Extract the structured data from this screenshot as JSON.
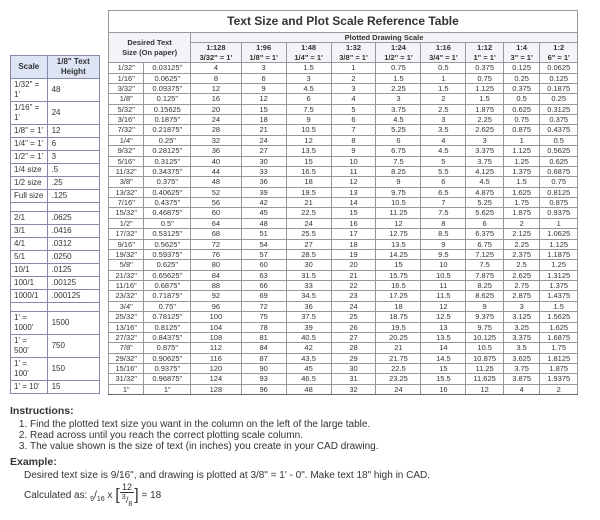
{
  "small_table": {
    "headers": [
      "Scale",
      "1/8\" Text Height"
    ],
    "groups": [
      [
        [
          "1/32\" = 1'",
          "48"
        ],
        [
          "1/16\" = 1'",
          "24"
        ],
        [
          "1/8\" = 1'",
          "12"
        ],
        [
          "1/4\" = 1'",
          "6"
        ],
        [
          "1/2\" = 1'",
          "3"
        ],
        [
          "1/4 size",
          ".5"
        ],
        [
          "1/2 size",
          ".25"
        ],
        [
          "Full size",
          ".125"
        ]
      ],
      [
        [
          "2/1",
          ".0625"
        ],
        [
          "3/1",
          ".0416"
        ],
        [
          "4/1",
          ".0312"
        ],
        [
          "5/1",
          ".0250"
        ],
        [
          "10/1",
          ".0125"
        ],
        [
          "100/1",
          ".00125"
        ],
        [
          "1000/1",
          ".000125"
        ]
      ],
      [
        [
          "1' = 1000'",
          "1500"
        ],
        [
          "1' = 500'",
          "750"
        ],
        [
          "1' = 100'",
          "150"
        ],
        [
          "1' = 10'",
          "15"
        ]
      ]
    ]
  },
  "main_table": {
    "title": "Text Size and Plot Scale Reference Table",
    "spanner": "Plotted Drawing Scale",
    "desired_header": [
      "Desired Text",
      "Size (On paper)"
    ],
    "scale_cols": [
      {
        "top": "1:128",
        "bot": "3/32\" = 1'"
      },
      {
        "top": "1:96",
        "bot": "1/8\" = 1'"
      },
      {
        "top": "1:48",
        "bot": "1/4\" = 1'"
      },
      {
        "top": "1:32",
        "bot": "3/8\" = 1'"
      },
      {
        "top": "1:24",
        "bot": "1/2\" = 1'"
      },
      {
        "top": "1:16",
        "bot": "3/4\" = 1'"
      },
      {
        "top": "1:12",
        "bot": "1\" = 1'"
      },
      {
        "top": "1:4",
        "bot": "3\" = 1'"
      },
      {
        "top": "1:2",
        "bot": "6\" = 1'"
      }
    ],
    "rows": [
      [
        "1/32\"",
        "0.03125\"",
        "4",
        "3",
        "1.5",
        "1",
        "0.75",
        "0.5",
        "0.375",
        "0.125",
        "0.0625"
      ],
      [
        "1/16\"",
        "0.0625\"",
        "8",
        "6",
        "3",
        "2",
        "1.5",
        "1",
        "0.75",
        "0.25",
        "0.125"
      ],
      [
        "3/32\"",
        "0.09375\"",
        "12",
        "9",
        "4.5",
        "3",
        "2.25",
        "1.5",
        "1.125",
        "0.375",
        "0.1875"
      ],
      [
        "1/8\"",
        "0.125\"",
        "16",
        "12",
        "6",
        "4",
        "3",
        "2",
        "1.5",
        "0.5",
        "0.25"
      ],
      [
        "5/32\"",
        "0.15625",
        "20",
        "15",
        "7.5",
        "5",
        "3.75",
        "2.5",
        "1.875",
        "0.625",
        "0.3125"
      ],
      [
        "3/16\"",
        "0.1875\"",
        "24",
        "18",
        "9",
        "6",
        "4.5",
        "3",
        "2.25",
        "0.75",
        "0.375"
      ],
      [
        "7/32\"",
        "0.21875\"",
        "28",
        "21",
        "10.5",
        "7",
        "5.25",
        "3.5",
        "2.625",
        "0.875",
        "0.4375"
      ],
      [
        "1/4\"",
        "0.25\"",
        "32",
        "24",
        "12",
        "8",
        "6",
        "4",
        "3",
        "1",
        "0.5"
      ],
      [
        "9/32\"",
        "0.28125\"",
        "36",
        "27",
        "13.5",
        "9",
        "6.75",
        "4.5",
        "3.375",
        "1.125",
        "0.5625"
      ],
      [
        "5/16\"",
        "0.3125\"",
        "40",
        "30",
        "15",
        "10",
        "7.5",
        "5",
        "3.75",
        "1.25",
        "0.625"
      ],
      [
        "11/32\"",
        "0.34375\"",
        "44",
        "33",
        "16.5",
        "11",
        "8.25",
        "5.5",
        "4.125",
        "1.375",
        "0.6875"
      ],
      [
        "3/8\"",
        "0.375\"",
        "48",
        "36",
        "18",
        "12",
        "9",
        "6",
        "4.5",
        "1.5",
        "0.75"
      ],
      [
        "13/32\"",
        "0.40625\"",
        "52",
        "39",
        "19.5",
        "13",
        "9.75",
        "6.5",
        "4.875",
        "1.625",
        "0.8125"
      ],
      [
        "7/16\"",
        "0.4375\"",
        "56",
        "42",
        "21",
        "14",
        "10.5",
        "7",
        "5.25",
        "1.75",
        "0.875"
      ],
      [
        "15/32\"",
        "0.46875\"",
        "60",
        "45",
        "22.5",
        "15",
        "11.25",
        "7.5",
        "5.625",
        "1.875",
        "0.9375"
      ],
      [
        "1/2\"",
        "0.5\"",
        "64",
        "48",
        "24",
        "16",
        "12",
        "8",
        "6",
        "2",
        "1"
      ],
      [
        "17/32\"",
        "0.53125\"",
        "68",
        "51",
        "25.5",
        "17",
        "12.75",
        "8.5",
        "6.375",
        "2.125",
        "1.0625"
      ],
      [
        "9/16\"",
        "0.5625\"",
        "72",
        "54",
        "27",
        "18",
        "13.5",
        "9",
        "6.75",
        "2.25",
        "1.125"
      ],
      [
        "19/32\"",
        "0.59375\"",
        "76",
        "57",
        "28.5",
        "19",
        "14.25",
        "9.5",
        "7.125",
        "2.375",
        "1.1875"
      ],
      [
        "5/8\"",
        "0.625\"",
        "80",
        "60",
        "30",
        "20",
        "15",
        "10",
        "7.5",
        "2.5",
        "1.25"
      ],
      [
        "21/32\"",
        "0.65625\"",
        "84",
        "63",
        "31.5",
        "21",
        "15.75",
        "10.5",
        "7.875",
        "2.625",
        "1.3125"
      ],
      [
        "11/16\"",
        "0.6875\"",
        "88",
        "66",
        "33",
        "22",
        "16.5",
        "11",
        "8.25",
        "2.75",
        "1.375"
      ],
      [
        "23/32\"",
        "0.71875\"",
        "92",
        "69",
        "34.5",
        "23",
        "17.25",
        "11.5",
        "8.625",
        "2.875",
        "1.4375"
      ],
      [
        "3/4\"",
        "0.75\"",
        "96",
        "72",
        "36",
        "24",
        "18",
        "12",
        "9",
        "3",
        "1.5"
      ],
      [
        "25/32\"",
        "0.78125\"",
        "100",
        "75",
        "37.5",
        "25",
        "18.75",
        "12.5",
        "9.375",
        "3.125",
        "1.5625"
      ],
      [
        "13/16\"",
        "0.8125\"",
        "104",
        "78",
        "39",
        "26",
        "19.5",
        "13",
        "9.75",
        "3.25",
        "1.625"
      ],
      [
        "27/32\"",
        "0.84375\"",
        "108",
        "81",
        "40.5",
        "27",
        "20.25",
        "13.5",
        "10.125",
        "3.375",
        "1.6875"
      ],
      [
        "7/8\"",
        "0.875\"",
        "112",
        "84",
        "42",
        "28",
        "21",
        "14",
        "10.5",
        "3.5",
        "1.75"
      ],
      [
        "29/32\"",
        "0.90625\"",
        "116",
        "87",
        "43.5",
        "29",
        "21.75",
        "14.5",
        "10.875",
        "3.625",
        "1.8125"
      ],
      [
        "15/16\"",
        "0.9375\"",
        "120",
        "90",
        "45",
        "30",
        "22.5",
        "15",
        "11.25",
        "3.75",
        "1.875"
      ],
      [
        "31/32\"",
        "0.96875\"",
        "124",
        "93",
        "46.5",
        "31",
        "23.25",
        "15.5",
        "11.625",
        "3.875",
        "1.9375"
      ],
      [
        "1\"",
        "1\"",
        "128",
        "96",
        "48",
        "32",
        "24",
        "16",
        "12",
        "4",
        "2"
      ]
    ]
  },
  "instructions": {
    "heading": "Instructions:",
    "items": [
      "Find the plotted text size you want in the column on the left of the large table.",
      "Read across until you reach the correct plotting scale column.",
      "The value shown is the size of text (in inches) you create in your CAD drawing."
    ],
    "example_heading": "Example:",
    "example_line": "Desired text size is 9/16\", and drawing is plotted at 3/8\" = 1' - 0\". Make text 18\" high in CAD.",
    "calc_prefix": "Calculated as: ",
    "calc_lead": "9/16 x",
    "calc_top": "12",
    "calc_bot": "3/8",
    "calc_result": " = 18"
  },
  "style": {
    "header_bg": "#dde4f4",
    "border": "#88a",
    "text": "#333",
    "body_fontsize": 10,
    "table_fontsize": 7.5
  }
}
